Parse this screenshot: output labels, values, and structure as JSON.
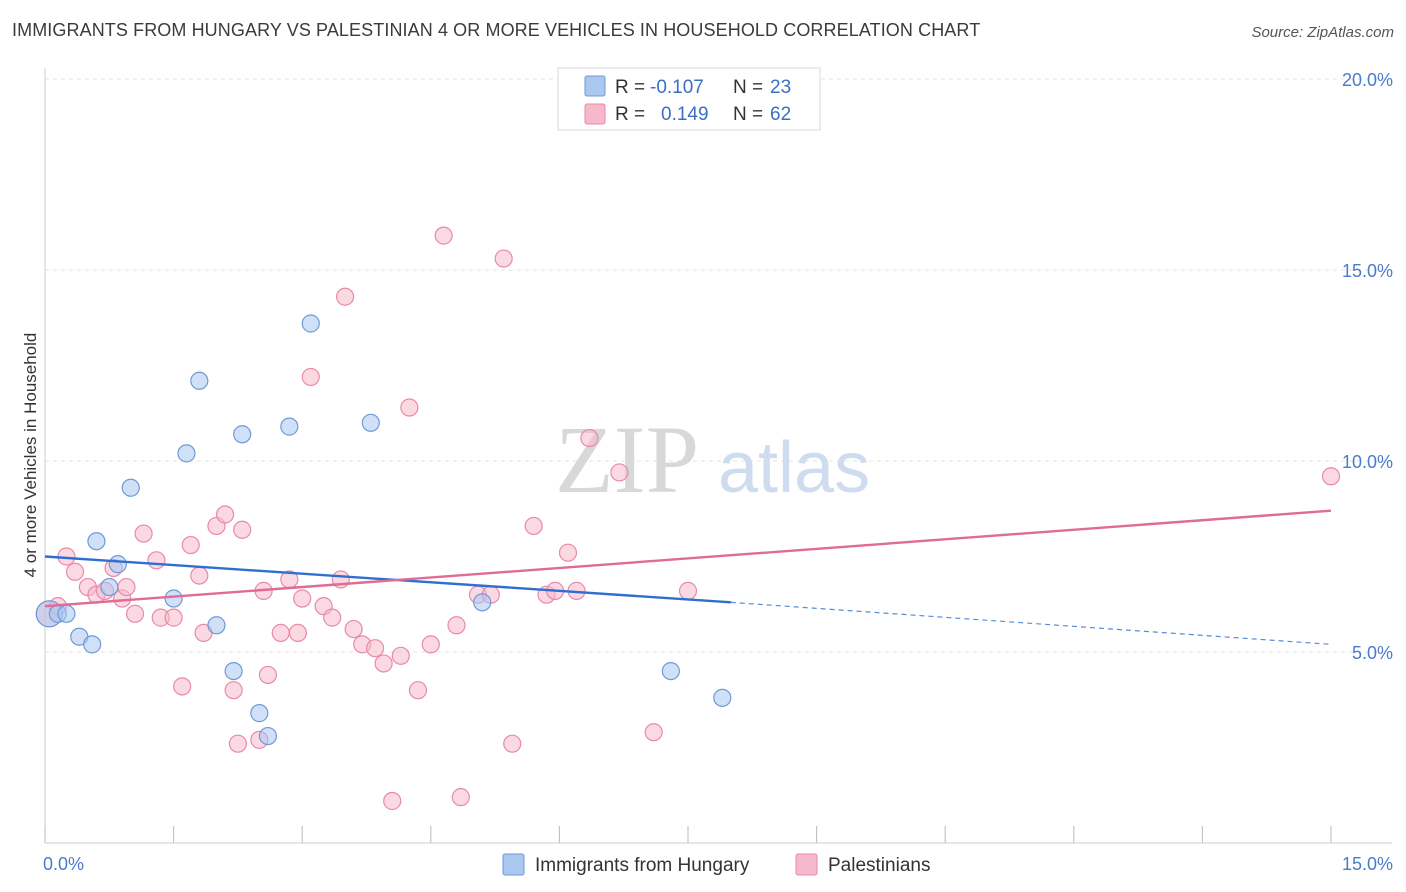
{
  "title": "IMMIGRANTS FROM HUNGARY VS PALESTINIAN 4 OR MORE VEHICLES IN HOUSEHOLD CORRELATION CHART",
  "source": "Source: ZipAtlas.com",
  "watermark": {
    "zip": "ZIP",
    "atlas": "atlas"
  },
  "colors": {
    "hungary_fill": "#aac7f0",
    "hungary_stroke": "#6f9ad6",
    "hungary_line": "#2f6fcf",
    "palestinian_fill": "#f6b9cc",
    "palestinian_stroke": "#e88aa8",
    "palestinian_line": "#e06b94",
    "tick_text": "#4a7cc9",
    "grid": "#e3e3e3"
  },
  "legend_top": [
    {
      "r_label": "R =",
      "r_value": "-0.107",
      "n_label": "N =",
      "n_value": "23",
      "series": "hungary"
    },
    {
      "r_label": "R =",
      "r_value": "0.149",
      "n_label": "N =",
      "n_value": "62",
      "series": "palestinian"
    }
  ],
  "legend_bottom": [
    {
      "label": "Immigrants from Hungary",
      "series": "hungary"
    },
    {
      "label": "Palestinians",
      "series": "palestinian"
    }
  ],
  "chart_data": {
    "type": "scatter",
    "title": "IMMIGRANTS FROM HUNGARY VS PALESTINIAN 4 OR MORE VEHICLES IN HOUSEHOLD CORRELATION CHART",
    "xlabel": "",
    "ylabel": "4 or more Vehicles in Household",
    "xlim": [
      0,
      15
    ],
    "ylim": [
      0,
      20
    ],
    "x_ticks": [
      {
        "value": 0,
        "label": "0.0%"
      },
      {
        "value": 15,
        "label": "15.0%"
      }
    ],
    "y_ticks": [
      {
        "value": 5,
        "label": "5.0%"
      },
      {
        "value": 10,
        "label": "10.0%"
      },
      {
        "value": 15,
        "label": "15.0%"
      },
      {
        "value": 20,
        "label": "20.0%"
      }
    ],
    "grid": true,
    "legend_placement": "top-center",
    "series": [
      {
        "name": "Immigrants from Hungary",
        "key": "hungary",
        "points": [
          [
            0.05,
            6.0
          ],
          [
            0.15,
            6.0
          ],
          [
            0.25,
            6.0
          ],
          [
            0.4,
            5.4
          ],
          [
            0.55,
            5.2
          ],
          [
            0.6,
            7.9
          ],
          [
            0.75,
            6.7
          ],
          [
            0.85,
            7.3
          ],
          [
            1.0,
            9.3
          ],
          [
            1.5,
            6.4
          ],
          [
            1.65,
            10.2
          ],
          [
            1.8,
            12.1
          ],
          [
            2.0,
            5.7
          ],
          [
            2.2,
            4.5
          ],
          [
            2.3,
            10.7
          ],
          [
            2.5,
            3.4
          ],
          [
            2.6,
            2.8
          ],
          [
            2.85,
            10.9
          ],
          [
            3.1,
            13.6
          ],
          [
            3.8,
            11.0
          ],
          [
            5.1,
            6.3
          ],
          [
            7.3,
            4.5
          ],
          [
            7.9,
            3.8
          ]
        ],
        "trend": {
          "x0": 0,
          "y0": 7.5,
          "x1": 8.0,
          "y1": 6.3,
          "dash_x1": 15,
          "dash_y1": 5.2
        }
      },
      {
        "name": "Palestinians",
        "key": "palestinian",
        "points": [
          [
            0.05,
            6.0
          ],
          [
            0.15,
            6.2
          ],
          [
            0.25,
            7.5
          ],
          [
            0.35,
            7.1
          ],
          [
            0.5,
            6.7
          ],
          [
            0.6,
            6.5
          ],
          [
            0.7,
            6.6
          ],
          [
            0.8,
            7.2
          ],
          [
            0.9,
            6.4
          ],
          [
            0.95,
            6.7
          ],
          [
            1.05,
            6.0
          ],
          [
            1.15,
            8.1
          ],
          [
            1.3,
            7.4
          ],
          [
            1.35,
            5.9
          ],
          [
            1.5,
            5.9
          ],
          [
            1.6,
            4.1
          ],
          [
            1.7,
            7.8
          ],
          [
            1.8,
            7.0
          ],
          [
            1.85,
            5.5
          ],
          [
            2.0,
            8.3
          ],
          [
            2.1,
            8.6
          ],
          [
            2.2,
            4.0
          ],
          [
            2.25,
            2.6
          ],
          [
            2.3,
            8.2
          ],
          [
            2.5,
            2.7
          ],
          [
            2.55,
            6.6
          ],
          [
            2.6,
            4.4
          ],
          [
            2.75,
            5.5
          ],
          [
            2.85,
            6.9
          ],
          [
            2.95,
            5.5
          ],
          [
            3.0,
            6.4
          ],
          [
            3.1,
            12.2
          ],
          [
            3.25,
            6.2
          ],
          [
            3.35,
            5.9
          ],
          [
            3.45,
            6.9
          ],
          [
            3.5,
            14.3
          ],
          [
            3.6,
            5.6
          ],
          [
            3.7,
            5.2
          ],
          [
            3.85,
            5.1
          ],
          [
            3.95,
            4.7
          ],
          [
            4.05,
            1.1
          ],
          [
            4.15,
            4.9
          ],
          [
            4.25,
            11.4
          ],
          [
            4.35,
            4.0
          ],
          [
            4.5,
            5.2
          ],
          [
            4.65,
            15.9
          ],
          [
            4.8,
            5.7
          ],
          [
            4.85,
            1.2
          ],
          [
            5.05,
            6.5
          ],
          [
            5.2,
            6.5
          ],
          [
            5.35,
            15.3
          ],
          [
            5.45,
            2.6
          ],
          [
            5.7,
            8.3
          ],
          [
            5.85,
            6.5
          ],
          [
            5.95,
            6.6
          ],
          [
            6.1,
            7.6
          ],
          [
            6.2,
            6.6
          ],
          [
            6.35,
            10.6
          ],
          [
            6.7,
            9.7
          ],
          [
            7.1,
            2.9
          ],
          [
            7.5,
            6.6
          ],
          [
            15.0,
            9.6
          ]
        ],
        "trend": {
          "x0": 0,
          "y0": 6.2,
          "x1": 15,
          "y1": 8.7
        }
      }
    ]
  }
}
